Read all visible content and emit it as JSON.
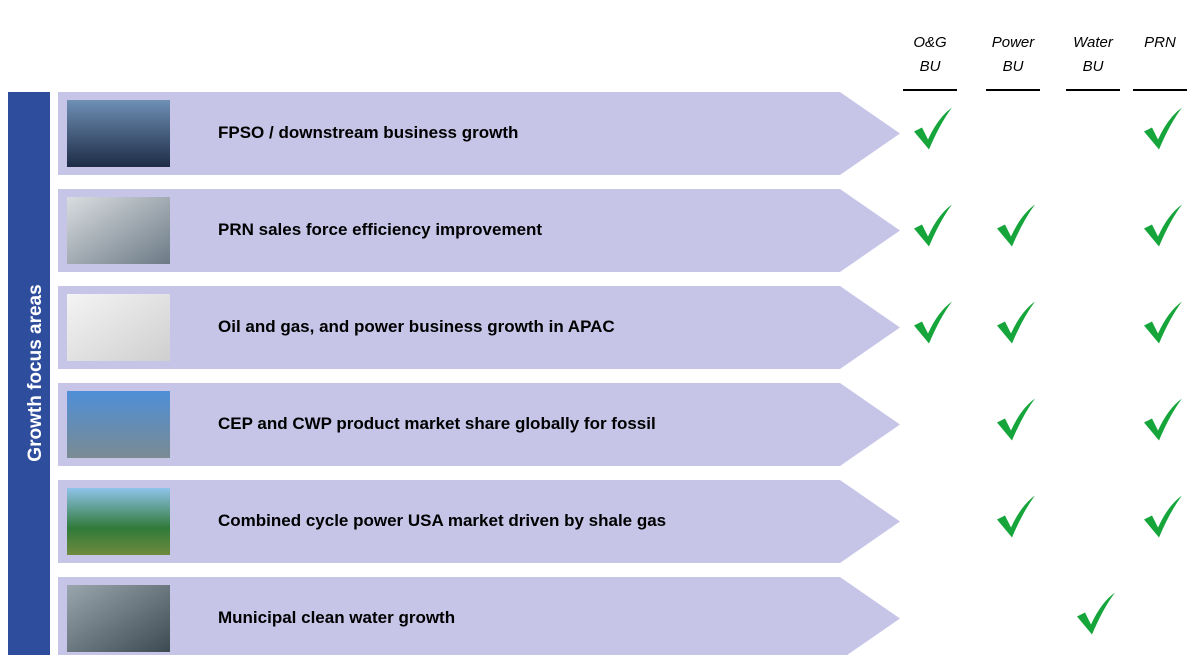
{
  "side_label": "Growth focus areas",
  "columns": [
    {
      "lines": [
        "O&G",
        "BU"
      ]
    },
    {
      "lines": [
        "Power",
        "BU"
      ]
    },
    {
      "lines": [
        "Water",
        "BU"
      ]
    },
    {
      "lines": [
        "PRN"
      ]
    }
  ],
  "rows": [
    {
      "label": "FPSO / downstream business growth",
      "checks": [
        true,
        false,
        false,
        true
      ]
    },
    {
      "label": "PRN sales force efficiency improvement",
      "checks": [
        true,
        true,
        false,
        true
      ]
    },
    {
      "label": "Oil and gas, and power business growth in APAC",
      "checks": [
        true,
        true,
        false,
        true
      ]
    },
    {
      "label": "CEP and CWP product market share globally for fossil",
      "checks": [
        false,
        true,
        false,
        true
      ]
    },
    {
      "label": "Combined cycle power USA market driven by shale gas",
      "checks": [
        false,
        true,
        false,
        true
      ]
    },
    {
      "label": "Municipal clean water growth",
      "checks": [
        false,
        false,
        true,
        false
      ]
    }
  ]
}
